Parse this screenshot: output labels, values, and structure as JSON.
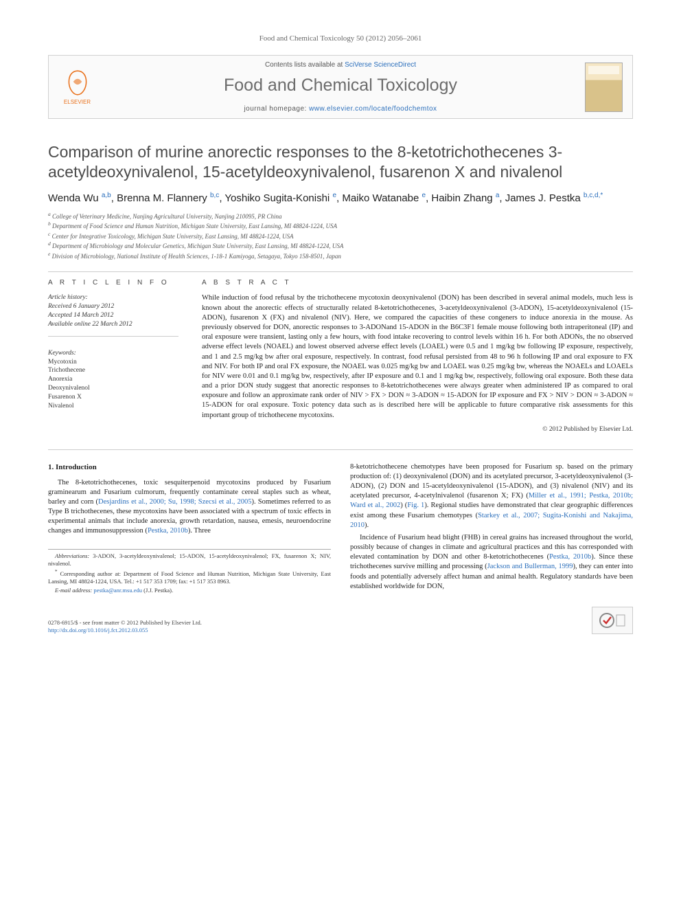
{
  "journal_ref": "Food and Chemical Toxicology 50 (2012) 2056–2061",
  "header": {
    "publisher": "ELSEVIER",
    "contents_prefix": "Contents lists available at ",
    "contents_link": "SciVerse ScienceDirect",
    "journal_name": "Food and Chemical Toxicology",
    "homepage_prefix": "journal homepage: ",
    "homepage_url": "www.elsevier.com/locate/foodchemtox",
    "cover_label_top": "Food and Chemical Toxicology"
  },
  "title": "Comparison of murine anorectic responses to the 8-ketotrichothecenes 3-acetyldeoxynivalenol, 15-acetyldeoxynivalenol, fusarenon X and nivalenol",
  "authors_html": "Wenda Wu <sup>a,b</sup>, Brenna M. Flannery <sup>b,c</sup>, Yoshiko Sugita-Konishi <sup>e</sup>, Maiko Watanabe <sup>e</sup>, Haibin Zhang <sup>a</sup>, James J. Pestka <sup>b,c,d,</sup><sup class=\"star\">*</sup>",
  "affiliations": [
    {
      "marker": "a",
      "text": "College of Veterinary Medicine, Nanjing Agricultural University, Nanjing 210095, PR China"
    },
    {
      "marker": "b",
      "text": "Department of Food Science and Human Nutrition, Michigan State University, East Lansing, MI 48824-1224, USA"
    },
    {
      "marker": "c",
      "text": "Center for Integrative Toxicology, Michigan State University, East Lansing, MI 48824-1224, USA"
    },
    {
      "marker": "d",
      "text": "Department of Microbiology and Molecular Genetics, Michigan State University, East Lansing, MI 48824-1224, USA"
    },
    {
      "marker": "e",
      "text": "Division of Microbiology, National Institute of Health Sciences, 1-18-1 Kamiyoga, Setagaya, Tokyo 158-8501, Japan"
    }
  ],
  "article_info_heading": "A R T I C L E   I N F O",
  "history": {
    "label": "Article history:",
    "received": "Received 6 January 2012",
    "accepted": "Accepted 14 March 2012",
    "online": "Available online 22 March 2012"
  },
  "keywords": {
    "label": "Keywords:",
    "items": [
      "Mycotoxin",
      "Trichothecene",
      "Anorexia",
      "Deoxynivalenol",
      "Fusarenon X",
      "Nivalenol"
    ]
  },
  "abstract_heading": "A B S T R A C T",
  "abstract": "While induction of food refusal by the trichothecene mycotoxin deoxynivalenol (DON) has been described in several animal models, much less is known about the anorectic effects of structurally related 8-ketotrichothecenes, 3-acetyldeoxynivalenol (3-ADON), 15-acetyldeoxynivalenol (15-ADON), fusarenon X (FX) and nivalenol (NIV). Here, we compared the capacities of these congeners to induce anorexia in the mouse. As previously observed for DON, anorectic responses to 3-ADONand 15-ADON in the B6C3F1 female mouse following both intraperitoneal (IP) and oral exposure were transient, lasting only a few hours, with food intake recovering to control levels within 16 h. For both ADONs, the no observed adverse effect levels (NOAEL) and lowest observed adverse effect levels (LOAEL) were 0.5 and 1 mg/kg bw following IP exposure, respectively, and 1 and 2.5 mg/kg bw after oral exposure, respectively. In contrast, food refusal persisted from 48 to 96 h following IP and oral exposure to FX and NIV. For both IP and oral FX exposure, the NOAEL was 0.025 mg/kg bw and LOAEL was 0.25 mg/kg bw, whereas the NOAELs and LOAELs for NIV were 0.01 and 0.1 mg/kg bw, respectively, after IP exposure and 0.1 and 1 mg/kg bw, respectively, following oral exposure. Both these data and a prior DON study suggest that anorectic responses to 8-ketotrichothecenes were always greater when administered IP as compared to oral exposure and follow an approximate rank order of NIV > FX > DON ≈ 3-ADON ≈ 15-ADON for IP exposure and FX > NIV > DON ≈ 3-ADON ≈ 15-ADON for oral exposure. Toxic potency data such as is described here will be applicable to future comparative risk assessments for this important group of trichothecene mycotoxins.",
  "abstract_copyright": "© 2012 Published by Elsevier Ltd.",
  "intro_heading": "1. Introduction",
  "intro_col1_p1_pre": "The 8-ketotrichothecenes, toxic sesquiterpenoid mycotoxins produced by Fusarium graminearum and Fusarium culmorum, frequently contaminate cereal staples such as wheat, barley and corn (",
  "intro_col1_p1_link": "Desjardins et al., 2000; Su, 1998; Szecsi et al., 2005",
  "intro_col1_p1_mid": "). Sometimes referred to as Type B trichothecenes, these mycotoxins have been associated with a spectrum of toxic effects in experimental animals that include anorexia, growth retardation, nausea, emesis, neuroendocrine changes and immunosuppression (",
  "intro_col1_p1_link2": "Pestka, 2010b",
  "intro_col1_p1_end": "). Three",
  "intro_col2_p1_pre": "8-ketotrichothecene chemotypes have been proposed for Fusarium sp. based on the primary production of: (1) deoxynivalenol (DON) and its acetylated precursor, 3-acetyldeoxynivalenol (3-ADON), (2) DON and 15-acetyldeoxynivalenol (15-ADON), and (3) nivalenol (NIV) and its acetylated precursor, 4-acetylnivalenol (fusarenon X; FX) (",
  "intro_col2_p1_link": "Miller et al., 1991; Pestka, 2010b; Ward et al., 2002",
  "intro_col2_p1_mid": ") (",
  "intro_col2_p1_fig": "Fig. 1",
  "intro_col2_p1_mid2": "). Regional studies have demonstrated that clear geographic differences exist among these Fusarium chemotypes (",
  "intro_col2_p1_link2": "Starkey et al., 2007; Sugita-Konishi and Nakajima, 2010",
  "intro_col2_p1_end": ").",
  "intro_col2_p2_pre": "Incidence of Fusarium head blight (FHB) in cereal grains has increased throughout the world, possibly because of changes in climate and agricultural practices and this has corresponded with elevated contamination by DON and other 8-ketotrichothecenes (",
  "intro_col2_p2_link": "Pestka, 2010b",
  "intro_col2_p2_mid": "). Since these trichothecenes survive milling and processing (",
  "intro_col2_p2_link2": "Jackson and Bullerman, 1999",
  "intro_col2_p2_end": "), they can enter into foods and potentially adversely affect human and animal health. Regulatory standards have been established worldwide for DON,",
  "footnotes": {
    "abbrev_label": "Abbreviations:",
    "abbrev_text": " 3-ADON, 3-acetyldeoxynivalenol; 15-ADON, 15-acetyldeoxynivalenol; FX, fusarenon X; NIV, nivalenol.",
    "corr_text": "Corresponding author at: Department of Food Science and Human Nutrition, Michigan State University, East Lansing, MI 48824-1224, USA. Tel.: +1 517 353 1709; fax: +1 517 353 8963.",
    "email_label": "E-mail address:",
    "email": "pestka@anr.msu.edu",
    "email_suffix": " (J.J. Pestka)."
  },
  "footer": {
    "line1_pre": "0278-6915/$ - see front matter ",
    "line1_copy": "© 2012 Published by Elsevier Ltd.",
    "doi": "http://dx.doi.org/10.1016/j.fct.2012.03.055"
  },
  "colors": {
    "link": "#2a6ebb",
    "elsevier_orange": "#e9711c",
    "text": "#333333",
    "heading_gray": "#6b6b6b",
    "border": "#d0d0d0"
  }
}
